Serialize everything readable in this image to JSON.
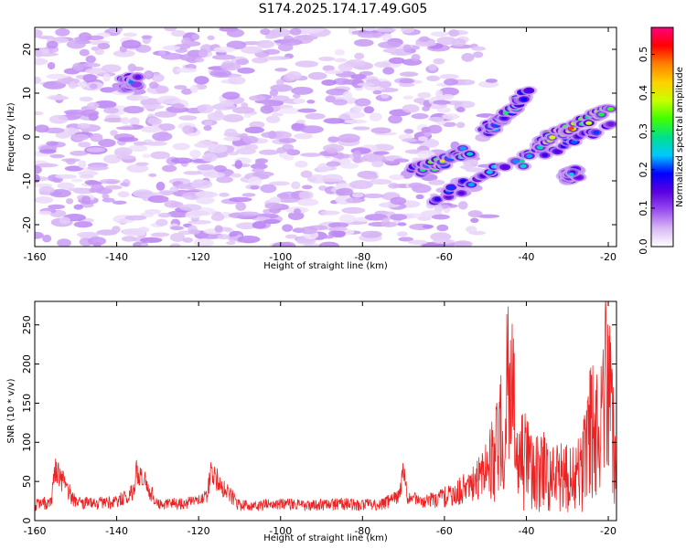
{
  "title": "S174.2025.174.17.49.G05",
  "chart_data": [
    {
      "type": "heatmap",
      "xlabel": "Height of straight line (km)",
      "ylabel": "Frequency (Hz)",
      "xlim": [
        -160,
        -18
      ],
      "ylim": [
        -25,
        25
      ],
      "xticks": [
        -160,
        -140,
        -120,
        -100,
        -80,
        -60,
        -40,
        -20
      ],
      "yticks": [
        -20,
        -10,
        0,
        10,
        20
      ],
      "colorbar": {
        "label": "Normalized spectral amplitude",
        "range": [
          0,
          0.57
        ],
        "ticks": [
          0.0,
          0.1,
          0.2,
          0.3,
          0.4,
          0.5
        ],
        "colors": [
          "#ffffff",
          "#d9b8f5",
          "#9a4df0",
          "#5a00e0",
          "#0000ff",
          "#00c8ff",
          "#00e08a",
          "#40ff00",
          "#c8ff00",
          "#ffd000",
          "#ff8000",
          "#ff0000",
          "#ff0080"
        ]
      },
      "background_amplitude": 0.05,
      "background_x_range": [
        -160,
        -58
      ],
      "features": [
        {
          "x": [
            -67,
            -54
          ],
          "y": [
            -8,
            -3
          ],
          "peak": 0.42
        },
        {
          "x": [
            -62,
            -20
          ],
          "y": [
            -14,
            3
          ],
          "peak": 0.28
        },
        {
          "x": [
            -50,
            -40
          ],
          "y": [
            1,
            10
          ],
          "peak": 0.3
        },
        {
          "x": [
            -38,
            -20
          ],
          "y": [
            -2,
            6
          ],
          "peak": 0.5
        },
        {
          "x": [
            -30,
            -28
          ],
          "y": [
            -9,
            -8
          ],
          "peak": 0.25
        },
        {
          "x": [
            -138,
            -135
          ],
          "y": [
            12,
            13
          ],
          "peak": 0.22
        }
      ]
    },
    {
      "type": "line",
      "xlabel": "Height of straight line (km)",
      "ylabel": "SNR (10 * v/v)",
      "xlim": [
        -160,
        -18
      ],
      "ylim": [
        0,
        280
      ],
      "xticks": [
        -160,
        -140,
        -120,
        -100,
        -80,
        -60,
        -40,
        -20
      ],
      "yticks": [
        0,
        50,
        100,
        150,
        200,
        250
      ],
      "line_color": "#ee2222",
      "x": [
        -160,
        -156,
        -155,
        -150,
        -145,
        -140,
        -136,
        -135,
        -130,
        -125,
        -120,
        -118,
        -117,
        -110,
        -105,
        -100,
        -95,
        -90,
        -85,
        -80,
        -75,
        -71,
        -70,
        -69,
        -65,
        -62,
        -58,
        -55,
        -52,
        -50,
        -48,
        -46,
        -45,
        -44,
        -42,
        -40,
        -38,
        -36,
        -34,
        -32,
        -30,
        -28,
        -26,
        -24,
        -22,
        -21,
        -20,
        -19,
        -18
      ],
      "y": [
        25,
        30,
        78,
        30,
        28,
        30,
        45,
        80,
        26,
        27,
        30,
        42,
        75,
        24,
        25,
        27,
        25,
        26,
        27,
        25,
        27,
        40,
        80,
        38,
        30,
        35,
        45,
        55,
        70,
        90,
        120,
        170,
        230,
        280,
        110,
        130,
        90,
        110,
        90,
        85,
        95,
        80,
        120,
        190,
        150,
        270,
        260,
        180,
        90
      ],
      "noise_amplitude": [
        0.5,
        0.5,
        0.4,
        0.5,
        0.5,
        0.5,
        0.45,
        0.4,
        0.5,
        0.5,
        0.5,
        0.45,
        0.4,
        0.5,
        0.5,
        0.5,
        0.5,
        0.5,
        0.5,
        0.5,
        0.5,
        0.45,
        0.4,
        0.45,
        0.5,
        0.55,
        0.6,
        0.65,
        0.7,
        0.75,
        0.8,
        0.85,
        0.8,
        0.7,
        0.9,
        0.9,
        0.9,
        0.9,
        0.9,
        0.9,
        0.9,
        0.9,
        0.9,
        0.85,
        0.85,
        0.75,
        0.75,
        0.8,
        0.9
      ]
    }
  ]
}
